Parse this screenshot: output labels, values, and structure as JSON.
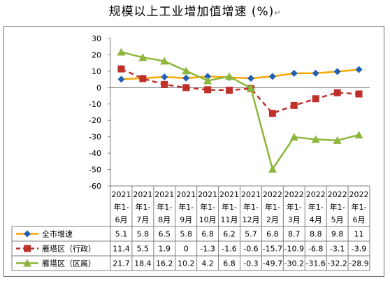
{
  "chart_data": {
    "type": "line",
    "title": "规模以上工业增加值增速 (%)",
    "title_suffix": "↵",
    "ylim": [
      -60,
      30
    ],
    "yticks": [
      30,
      20,
      10,
      0,
      -10,
      -20,
      -30,
      -40,
      -50,
      -60
    ],
    "grid": false,
    "legend": "data-table-left",
    "categories": [
      [
        "2021",
        "年1-",
        "6月"
      ],
      [
        "2021",
        "年1-",
        "7月"
      ],
      [
        "2021",
        "年1-",
        "8月"
      ],
      [
        "2021",
        "年1-",
        "9月"
      ],
      [
        "2021",
        "年1-",
        "10月"
      ],
      [
        "2021",
        "年1-",
        "11月"
      ],
      [
        "2021",
        "年1-",
        "12月"
      ],
      [
        "2022",
        "年1-",
        "2月"
      ],
      [
        "2022",
        "年1-",
        "3月"
      ],
      [
        "2022",
        "年1-",
        "4月"
      ],
      [
        "2022",
        "年1-",
        "5月"
      ],
      [
        "2022",
        "年1-",
        "6月"
      ]
    ],
    "series": [
      {
        "name": "全市增速",
        "color": "#f5a800",
        "marker": "diamond",
        "marker_color": "#1f5fb4",
        "dash": "solid",
        "values": [
          5.1,
          5.8,
          6.5,
          5.8,
          6.8,
          6.2,
          5.7,
          6.8,
          8.7,
          8.8,
          9.8,
          11
        ],
        "labels": [
          "5.1",
          "5.8",
          "6.5",
          "5.8",
          "6.8",
          "6.2",
          "5.7",
          "6.8",
          "8.7",
          "8.8",
          "9.8",
          "11"
        ]
      },
      {
        "name": "雁塔区（行政）",
        "color": "#c0302a",
        "marker": "square",
        "marker_color": "#c0302a",
        "dash": "dashed",
        "values": [
          11.4,
          5.5,
          1.9,
          0,
          -1.3,
          -1.6,
          -0.6,
          -15.7,
          -10.9,
          -6.8,
          -3.1,
          -3.9
        ],
        "labels": [
          "11.4",
          "5.5",
          "1.9",
          "0",
          "-1.3",
          "-1.6",
          "-0.6",
          "-15.7",
          "-10.9",
          "-6.8",
          "-3.1",
          "-3.9"
        ]
      },
      {
        "name": "雁塔区（区属）",
        "color": "#8db63c",
        "marker": "triangle",
        "marker_color": "#8db63c",
        "dash": "solid",
        "values": [
          21.7,
          18.4,
          16.2,
          10.2,
          4.2,
          6.8,
          -0.3,
          -49.7,
          -30.2,
          -31.6,
          -32.2,
          -28.9
        ],
        "labels": [
          "21.7",
          "18.4",
          "16.2",
          "10.2",
          "4.2",
          "6.8",
          "-0.3",
          "-49.7",
          "-30.2",
          "-31.6",
          "-32.2",
          "-28.9"
        ]
      }
    ]
  }
}
